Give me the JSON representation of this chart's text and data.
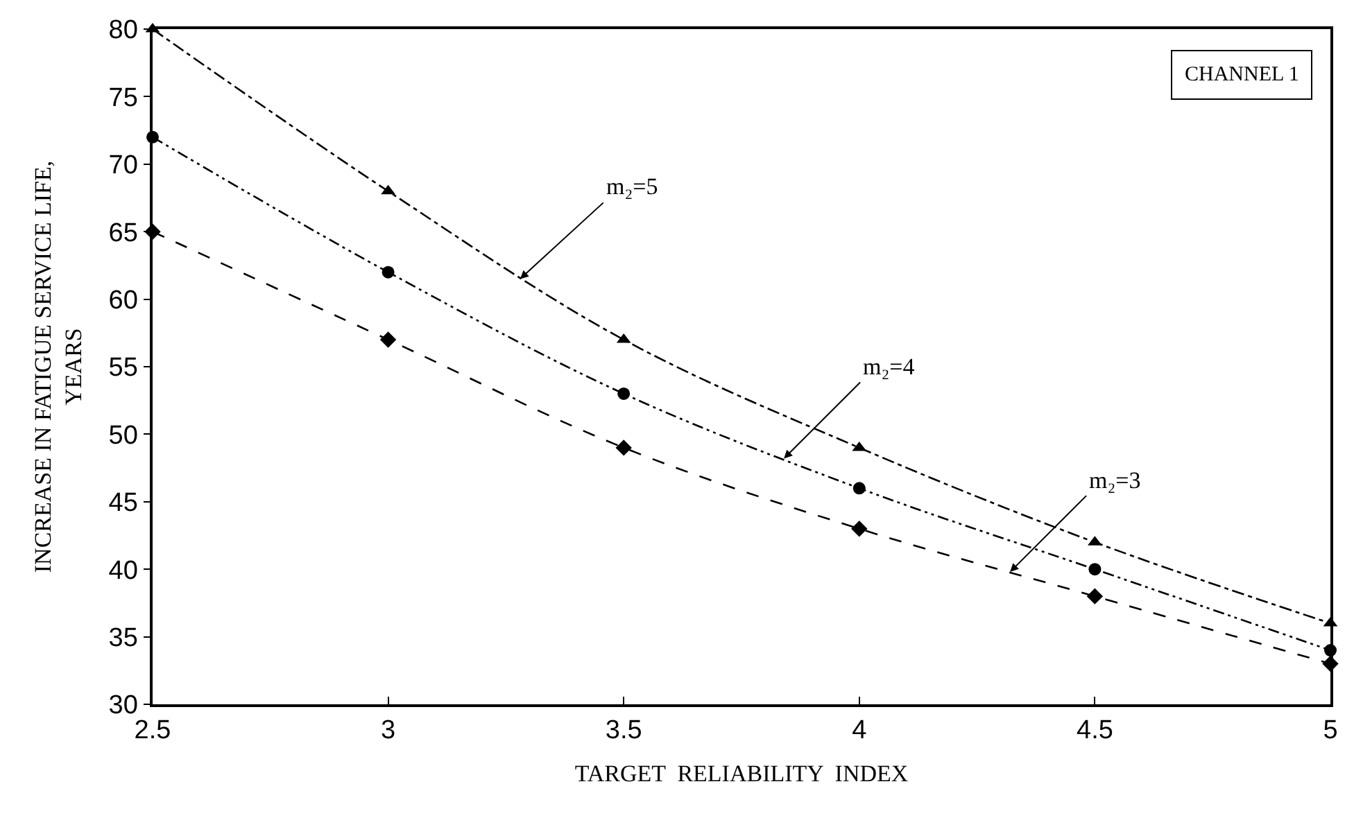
{
  "chart_data": {
    "type": "line",
    "xlabel": "TARGET  RELIABILITY  INDEX",
    "ylabel": "INCREASE IN FATIGUE SERVICE LIFE,\nYEARS",
    "x": [
      2.5,
      3,
      3.5,
      4,
      4.5,
      5
    ],
    "series": [
      {
        "color": "#000000",
        "marker": "triangle",
        "line_style": "dashdot",
        "values": [
          80,
          68,
          57,
          49,
          42,
          36
        ]
      },
      {
        "color": "#000000",
        "marker": "circle",
        "line_style": "longdashdot",
        "values": [
          72,
          62,
          53,
          46,
          40,
          34
        ]
      },
      {
        "color": "#000000",
        "marker": "diamond",
        "line_style": "dashed",
        "values": [
          65,
          57,
          49,
          43,
          38,
          33
        ]
      }
    ],
    "xlim": [
      2.5,
      5
    ],
    "xticks": [
      2.5,
      3,
      3.5,
      4,
      4.5,
      5
    ],
    "ylim": [
      30,
      80
    ],
    "yticks": [
      30,
      35,
      40,
      45,
      50,
      55,
      60,
      65,
      70,
      75,
      80
    ],
    "annotations": [
      {
        "text": "m₂=5",
        "x": 3.28,
        "y": 61.5
      },
      {
        "text": "m₂=4",
        "x": 3.84,
        "y": 48.2
      },
      {
        "text": "m₂=3",
        "x": 4.32,
        "y": 39.8
      },
      "CHANNEL 1"
    ]
  }
}
